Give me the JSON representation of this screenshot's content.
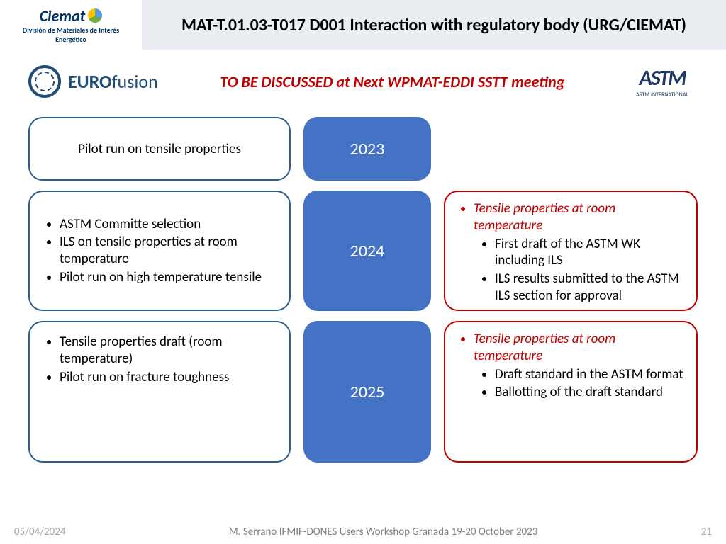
{
  "header": {
    "ciemat_main": "Ciemat",
    "ciemat_sub1": "División de Materiales de Interés",
    "ciemat_sub2": "Energético",
    "title": "MAT-T.01.03-T017 D001 Interaction with regulatory body (URG/CIEMAT)"
  },
  "logos": {
    "eurofusion_bold": "EURO",
    "eurofusion_light": "fusion",
    "subtitle": "TO BE DISCUSSED at Next WPMAT-EDDI SSTT meeting",
    "astm_main": "ASTM",
    "astm_sub": "ASTM INTERNATIONAL"
  },
  "rows": {
    "r1": {
      "left_text": "Pilot run on tensile properties",
      "year": "2023"
    },
    "r2": {
      "left_items": [
        "ASTM Committe selection",
        "ILS on tensile properties at room temperature",
        "Pilot run on high temperature tensile"
      ],
      "year": "2024",
      "right_head": "Tensile properties at room temperature",
      "right_items": [
        "First draft of the ASTM WK including ILS",
        "ILS results submitted to the ASTM ILS section for approval"
      ]
    },
    "r3": {
      "left_items": [
        "Tensile properties draft (room temperature)",
        "Pilot run on fracture toughness"
      ],
      "year": "2025",
      "right_head": "Tensile properties at room temperature",
      "right_items": [
        "Draft standard in the ASTM format",
        "Ballotting of the draft standard"
      ]
    }
  },
  "footer": {
    "date": "05/04/2024",
    "center": "M. Serrano IFMIF-DONES Users Workshop Granada 19-20 October 2023",
    "page": "21"
  },
  "colors": {
    "title_bg": "#eaeef3",
    "year_bg": "#4472c4",
    "left_border": "#2e5c8a",
    "right_border": "#c00000",
    "red_text": "#c00000"
  }
}
